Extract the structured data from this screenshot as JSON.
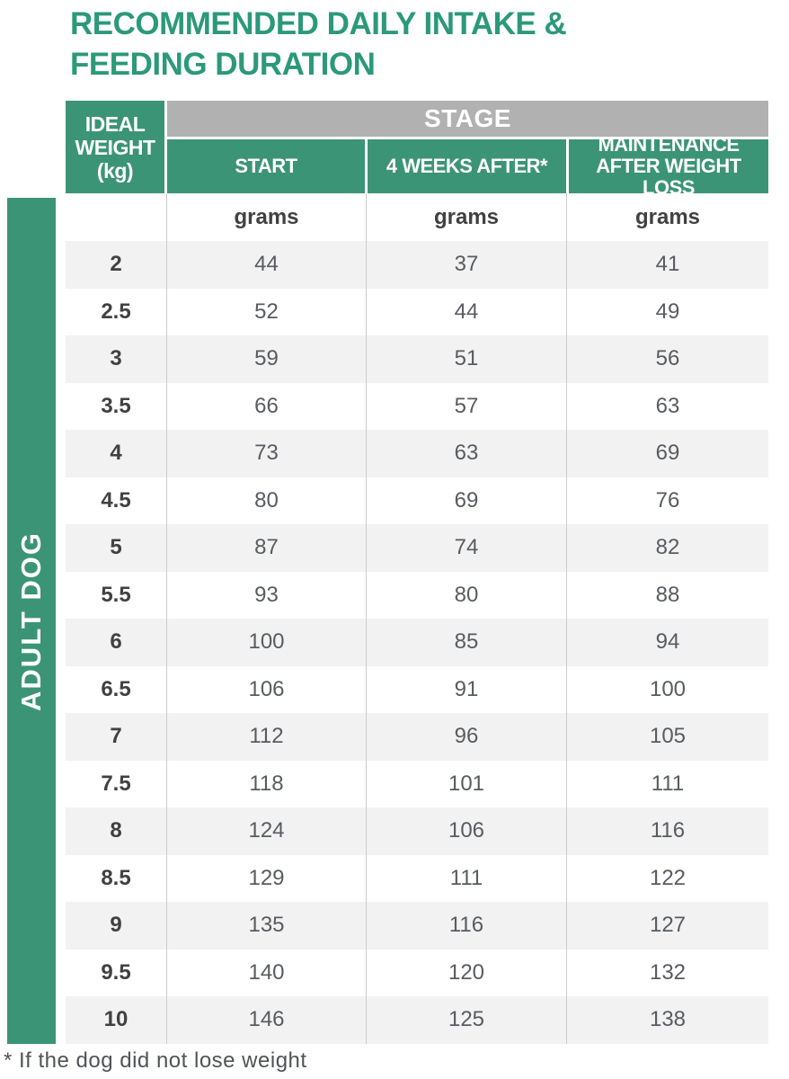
{
  "title": "RECOMMENDED DAILY INTAKE & FEEDING DURATION",
  "sidebar_label": "ADULT DOG",
  "footnote": "* If the dog did not lose weight",
  "colors": {
    "green": "#3C9477",
    "title_green": "#2B997A",
    "stage_gray": "#B1B1B1",
    "row_stripe": "#F2F2F2",
    "value_text": "#585B60",
    "weight_text": "#414042"
  },
  "chart_data": {
    "type": "table",
    "title": "RECOMMENDED DAILY INTAKE & FEEDING DURATION",
    "group_label": "ADULT DOG",
    "corner_header": "IDEAL WEIGHT (kg)",
    "stage_header": "STAGE",
    "stage_columns": [
      "START",
      "4 WEEKS AFTER*",
      "MAINTENANCE AFTER WEIGHT LOSS"
    ],
    "unit": "grams",
    "rows": [
      [
        2,
        44,
        37,
        41
      ],
      [
        2.5,
        52,
        44,
        49
      ],
      [
        3,
        59,
        51,
        56
      ],
      [
        3.5,
        66,
        57,
        63
      ],
      [
        4,
        73,
        63,
        69
      ],
      [
        4.5,
        80,
        69,
        76
      ],
      [
        5,
        87,
        74,
        82
      ],
      [
        5.5,
        93,
        80,
        88
      ],
      [
        6,
        100,
        85,
        94
      ],
      [
        6.5,
        106,
        91,
        100
      ],
      [
        7,
        112,
        96,
        105
      ],
      [
        7.5,
        118,
        101,
        111
      ],
      [
        8,
        124,
        106,
        116
      ],
      [
        8.5,
        129,
        111,
        122
      ],
      [
        9,
        135,
        116,
        127
      ],
      [
        9.5,
        140,
        120,
        132
      ],
      [
        10,
        146,
        125,
        138
      ]
    ],
    "footnote": "* If the dog did not lose weight"
  }
}
